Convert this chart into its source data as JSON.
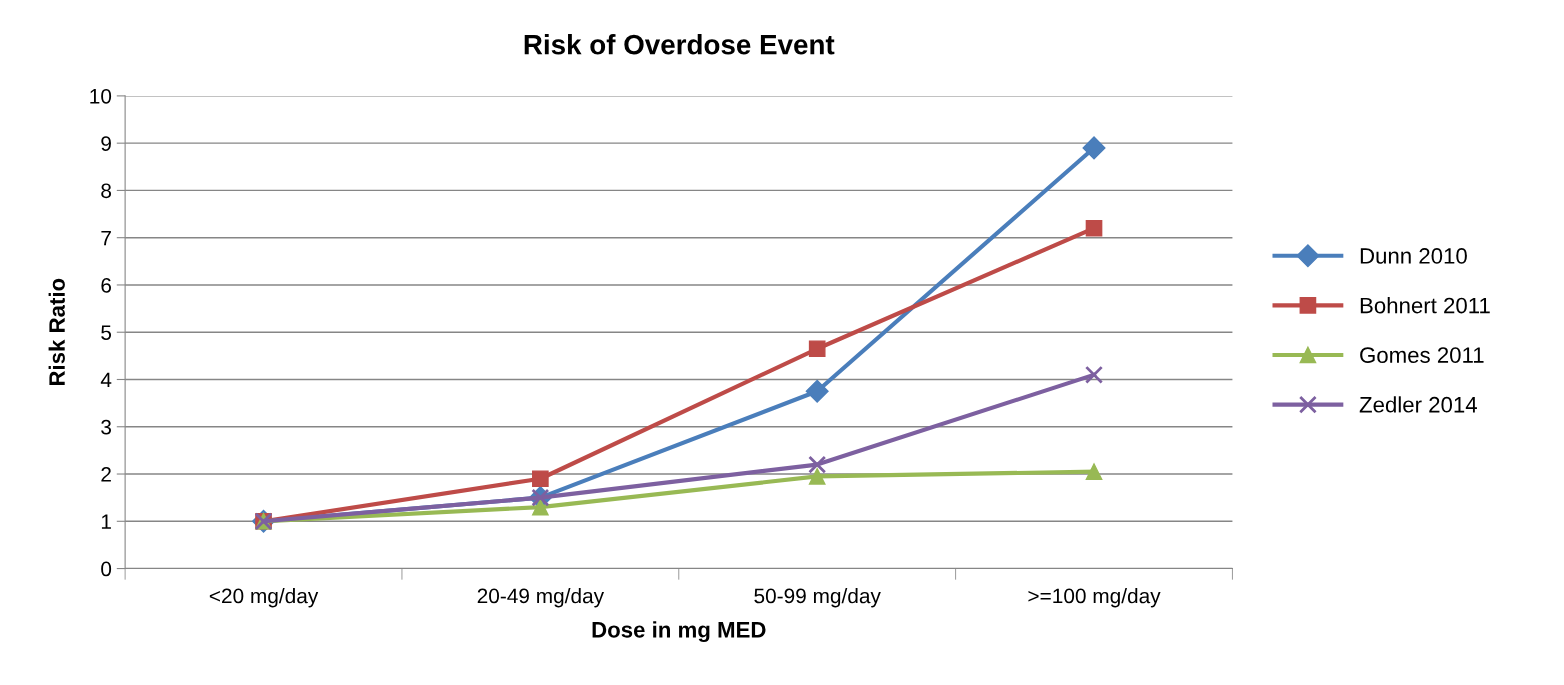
{
  "chart_data": {
    "type": "line",
    "title": "Risk of Overdose Event",
    "xlabel": "Dose in mg MED",
    "ylabel": "Risk Ratio",
    "categories": [
      "<20 mg/day",
      "20-49 mg/day",
      "50-99 mg/day",
      ">=100 mg/day"
    ],
    "series": [
      {
        "name": "Dunn 2010",
        "color": "#4a7ebb",
        "marker": "diamond",
        "values": [
          1,
          1.5,
          3.75,
          8.9
        ]
      },
      {
        "name": "Bohnert 2011",
        "color": "#be4b48",
        "marker": "square",
        "values": [
          1,
          1.9,
          4.65,
          7.2
        ]
      },
      {
        "name": "Gomes 2011",
        "color": "#98b954",
        "marker": "triangle",
        "values": [
          1,
          1.3,
          1.95,
          2.05
        ]
      },
      {
        "name": "Zedler 2014",
        "color": "#7d60a0",
        "marker": "cross",
        "values": [
          1,
          1.5,
          2.2,
          4.1
        ]
      }
    ],
    "ylim": [
      0,
      10
    ],
    "yticks": [
      0,
      1,
      2,
      3,
      4,
      5,
      6,
      7,
      8,
      9,
      10
    ],
    "grid": "y",
    "legend": "right",
    "line_style": "solid"
  }
}
